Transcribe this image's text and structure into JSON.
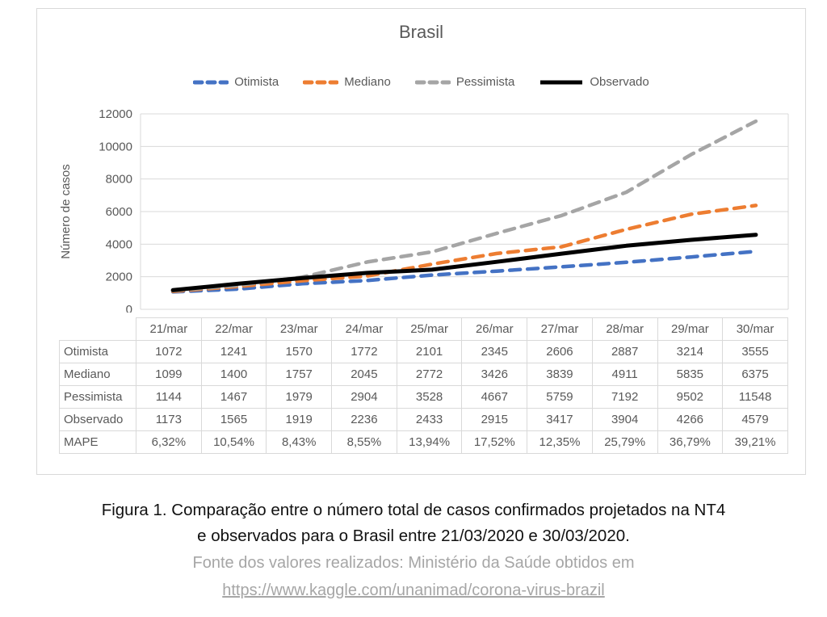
{
  "chart_data": {
    "type": "line",
    "title": "Brasil",
    "xlabel": "",
    "ylabel": "Número de casos",
    "ylim": [
      0,
      12000
    ],
    "ytick_step": 2000,
    "yticks": [
      0,
      2000,
      4000,
      6000,
      8000,
      10000,
      12000
    ],
    "grid": "horizontal",
    "legend_position": "top",
    "categories": [
      "21/mar",
      "22/mar",
      "23/mar",
      "24/mar",
      "25/mar",
      "26/mar",
      "27/mar",
      "28/mar",
      "29/mar",
      "30/mar"
    ],
    "series": [
      {
        "name": "Otimista",
        "color": "#4472c4",
        "style": "dashed",
        "values": [
          1072,
          1241,
          1570,
          1772,
          2101,
          2345,
          2606,
          2887,
          3214,
          3555
        ]
      },
      {
        "name": "Mediano",
        "color": "#ed7d31",
        "style": "dashed",
        "values": [
          1099,
          1400,
          1757,
          2045,
          2772,
          3426,
          3839,
          4911,
          5835,
          6375
        ]
      },
      {
        "name": "Pessimista",
        "color": "#a5a5a5",
        "style": "dashed",
        "values": [
          1144,
          1467,
          1979,
          2904,
          3528,
          4667,
          5759,
          7192,
          9502,
          11548
        ]
      },
      {
        "name": "Observado",
        "color": "#000000",
        "style": "solid",
        "values": [
          1173,
          1565,
          1919,
          2236,
          2433,
          2915,
          3417,
          3904,
          4266,
          4579
        ]
      }
    ]
  },
  "table": {
    "corner_label": "",
    "columns": [
      "21/mar",
      "22/mar",
      "23/mar",
      "24/mar",
      "25/mar",
      "26/mar",
      "27/mar",
      "28/mar",
      "29/mar",
      "30/mar"
    ],
    "rows": [
      {
        "label": "Otimista",
        "values": [
          "1072",
          "1241",
          "1570",
          "1772",
          "2101",
          "2345",
          "2606",
          "2887",
          "3214",
          "3555"
        ]
      },
      {
        "label": "Mediano",
        "values": [
          "1099",
          "1400",
          "1757",
          "2045",
          "2772",
          "3426",
          "3839",
          "4911",
          "5835",
          "6375"
        ]
      },
      {
        "label": "Pessimista",
        "values": [
          "1144",
          "1467",
          "1979",
          "2904",
          "3528",
          "4667",
          "5759",
          "7192",
          "9502",
          "11548"
        ]
      },
      {
        "label": "Observado",
        "values": [
          "1173",
          "1565",
          "1919",
          "2236",
          "2433",
          "2915",
          "3417",
          "3904",
          "4266",
          "4579"
        ]
      },
      {
        "label": "MAPE",
        "values": [
          "6,32%",
          "10,54%",
          "8,43%",
          "8,55%",
          "13,94%",
          "17,52%",
          "12,35%",
          "25,79%",
          "36,79%",
          "39,21%"
        ]
      }
    ]
  },
  "caption": {
    "line1": "Figura 1. Comparação entre o número total de casos confirmados projetados na NT4",
    "line2": "e observados para o Brasil entre 21/03/2020 e 30/03/2020.",
    "source_text": "Fonte dos valores realizados: Ministério da Saúde obtidos em",
    "source_url": "https://www.kaggle.com/unanimad/corona-virus-brazil"
  },
  "colors": {
    "grid": "#d9d9d9",
    "axis_text": "#595959",
    "caption_gray": "#a6a6a6"
  }
}
